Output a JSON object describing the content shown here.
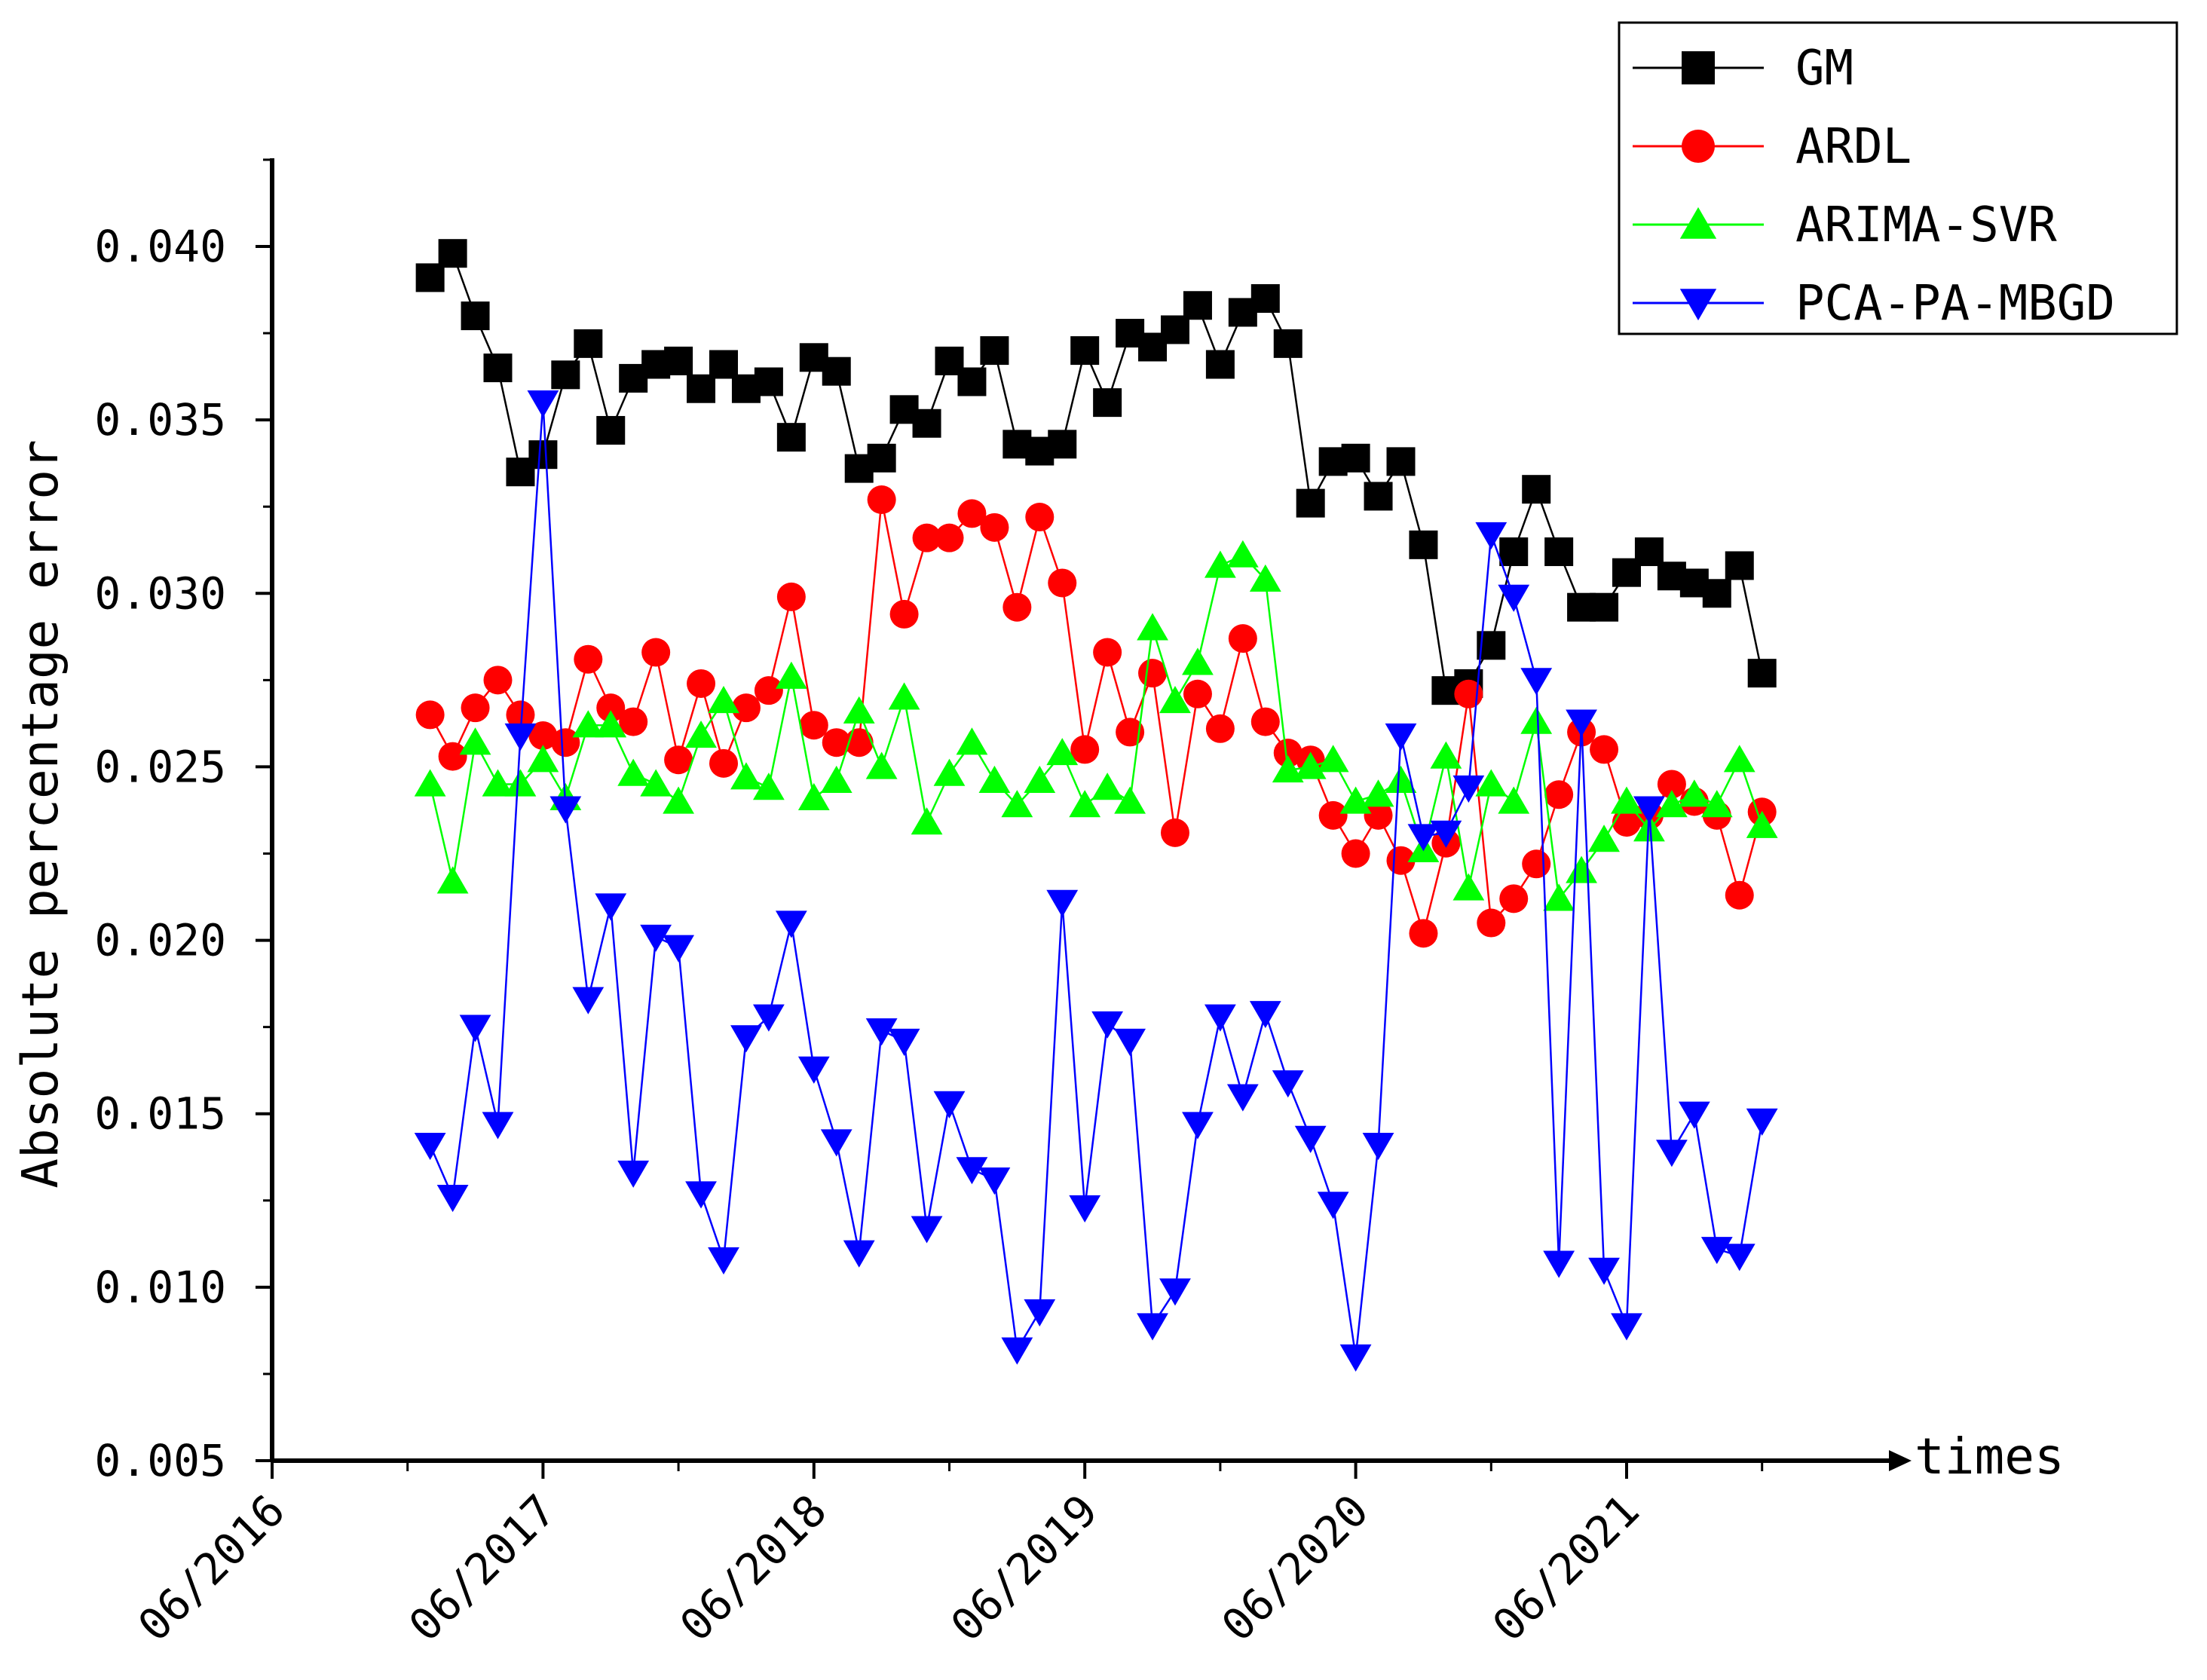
{
  "chart_data": {
    "type": "line",
    "title": "",
    "xlabel": "times",
    "ylabel": "Absolute percentage error",
    "xlim": [
      2016.5,
      2022.3
    ],
    "ylim": [
      0.005,
      0.0425
    ],
    "x_ticks": [
      {
        "value": 2016.5,
        "label": "06/2016"
      },
      {
        "value": 2017.5,
        "label": "06/2017"
      },
      {
        "value": 2018.5,
        "label": "06/2018"
      },
      {
        "value": 2019.5,
        "label": "06/2019"
      },
      {
        "value": 2020.5,
        "label": "06/2020"
      },
      {
        "value": 2021.5,
        "label": "06/2021"
      }
    ],
    "y_ticks": [
      {
        "value": 0.005,
        "label": "0.005"
      },
      {
        "value": 0.01,
        "label": "0.010"
      },
      {
        "value": 0.015,
        "label": "0.015"
      },
      {
        "value": 0.02,
        "label": "0.020"
      },
      {
        "value": 0.025,
        "label": "0.025"
      },
      {
        "value": 0.03,
        "label": "0.030"
      },
      {
        "value": 0.035,
        "label": "0.035"
      },
      {
        "value": 0.04,
        "label": "0.040"
      }
    ],
    "legend_position": "top-right",
    "x": [
      2017.0833,
      2017.1667,
      2017.25,
      2017.3333,
      2017.4167,
      2017.5,
      2017.5833,
      2017.6667,
      2017.75,
      2017.8333,
      2017.9167,
      2018.0,
      2018.0833,
      2018.1667,
      2018.25,
      2018.3333,
      2018.4167,
      2018.5,
      2018.5833,
      2018.6667,
      2018.75,
      2018.8333,
      2018.9167,
      2019.0,
      2019.0833,
      2019.1667,
      2019.25,
      2019.3333,
      2019.4167,
      2019.5,
      2019.5833,
      2019.6667,
      2019.75,
      2019.8333,
      2019.9167,
      2020.0,
      2020.0833,
      2020.1667,
      2020.25,
      2020.3333,
      2020.4167,
      2020.5,
      2020.5833,
      2020.6667,
      2020.75,
      2020.8333,
      2020.9167,
      2021.0,
      2021.0833,
      2021.1667,
      2021.25,
      2021.3333,
      2021.4167,
      2021.5,
      2021.5833,
      2021.6667,
      2021.75,
      2021.8333,
      2021.9167,
      2022.0
    ],
    "series": [
      {
        "name": "GM",
        "color": "#000000",
        "marker": "square",
        "values": [
          0.0391,
          0.0398,
          0.038,
          0.0365,
          0.0335,
          0.034,
          0.0363,
          0.0372,
          0.0347,
          0.0362,
          0.0366,
          0.0367,
          0.0359,
          0.0366,
          0.0359,
          0.0361,
          0.0345,
          0.0368,
          0.0364,
          0.0336,
          0.0339,
          0.0353,
          0.0349,
          0.0367,
          0.0361,
          0.037,
          0.0343,
          0.0341,
          0.0343,
          0.037,
          0.0355,
          0.0375,
          0.0371,
          0.0376,
          0.0383,
          0.0366,
          0.0381,
          0.0385,
          0.0372,
          0.0326,
          0.0338,
          0.0339,
          0.0328,
          0.0338,
          0.0314,
          0.0272,
          0.0274,
          0.0285,
          0.0312,
          0.033,
          0.0312,
          0.0296,
          0.0296,
          0.0306,
          0.0312,
          0.0305,
          0.0303,
          0.03,
          0.0308,
          0.0277
        ]
      },
      {
        "name": "ARDL",
        "color": "#ff0000",
        "marker": "circle",
        "values": [
          0.0265,
          0.0253,
          0.0267,
          0.0275,
          0.0265,
          0.0259,
          0.0257,
          0.0281,
          0.0267,
          0.0263,
          0.0283,
          0.0252,
          0.0274,
          0.0251,
          0.0267,
          0.0272,
          0.0299,
          0.0262,
          0.0257,
          0.0257,
          0.0327,
          0.0294,
          0.0316,
          0.0316,
          0.0323,
          0.0319,
          0.0296,
          0.0322,
          0.0303,
          0.0255,
          0.0283,
          0.026,
          0.0277,
          0.0231,
          0.0271,
          0.0261,
          0.0287,
          0.0263,
          0.0254,
          0.0252,
          0.0236,
          0.0225,
          0.0236,
          0.0223,
          0.0202,
          0.0228,
          0.0271,
          0.0205,
          0.0212,
          0.0222,
          0.0242,
          0.026,
          0.0255,
          0.0234,
          0.0236,
          0.0245,
          0.024,
          0.0236,
          0.0213,
          0.0237
        ]
      },
      {
        "name": "ARIMA-SVR",
        "color": "#00ff00",
        "marker": "triangle-up",
        "values": [
          0.0245,
          0.0217,
          0.0257,
          0.0245,
          0.0245,
          0.0252,
          0.0241,
          0.0262,
          0.0262,
          0.0248,
          0.0245,
          0.024,
          0.0259,
          0.0269,
          0.0247,
          0.0244,
          0.0276,
          0.0241,
          0.0246,
          0.0266,
          0.025,
          0.027,
          0.0234,
          0.0248,
          0.0257,
          0.0246,
          0.0239,
          0.0246,
          0.0254,
          0.0239,
          0.0244,
          0.024,
          0.029,
          0.0269,
          0.028,
          0.0308,
          0.0311,
          0.0304,
          0.0249,
          0.025,
          0.0252,
          0.024,
          0.0242,
          0.0246,
          0.0226,
          0.0253,
          0.0215,
          0.0245,
          0.024,
          0.0263,
          0.0212,
          0.022,
          0.0229,
          0.024,
          0.0232,
          0.0239,
          0.0242,
          0.0239,
          0.0252,
          0.0233
        ]
      },
      {
        "name": "PCA-PA-MBGD",
        "color": "#0000ff",
        "marker": "triangle-down",
        "values": [
          0.0141,
          0.0126,
          0.0175,
          0.0147,
          0.0259,
          0.0355,
          0.0238,
          0.0183,
          0.021,
          0.0133,
          0.0201,
          0.0198,
          0.0127,
          0.0108,
          0.0172,
          0.0178,
          0.0205,
          0.0163,
          0.0142,
          0.011,
          0.0174,
          0.0171,
          0.0117,
          0.0153,
          0.0134,
          0.0131,
          0.0082,
          0.0093,
          0.0211,
          0.0123,
          0.0176,
          0.0171,
          0.0089,
          0.0099,
          0.0147,
          0.0178,
          0.0155,
          0.0179,
          0.0159,
          0.0143,
          0.0124,
          0.008,
          0.0141,
          0.0259,
          0.023,
          0.0231,
          0.0244,
          0.0317,
          0.0299,
          0.0275,
          0.0107,
          0.0263,
          0.0105,
          0.0089,
          0.0238,
          0.0139,
          0.015,
          0.0111,
          0.0109,
          0.0148
        ]
      }
    ]
  }
}
